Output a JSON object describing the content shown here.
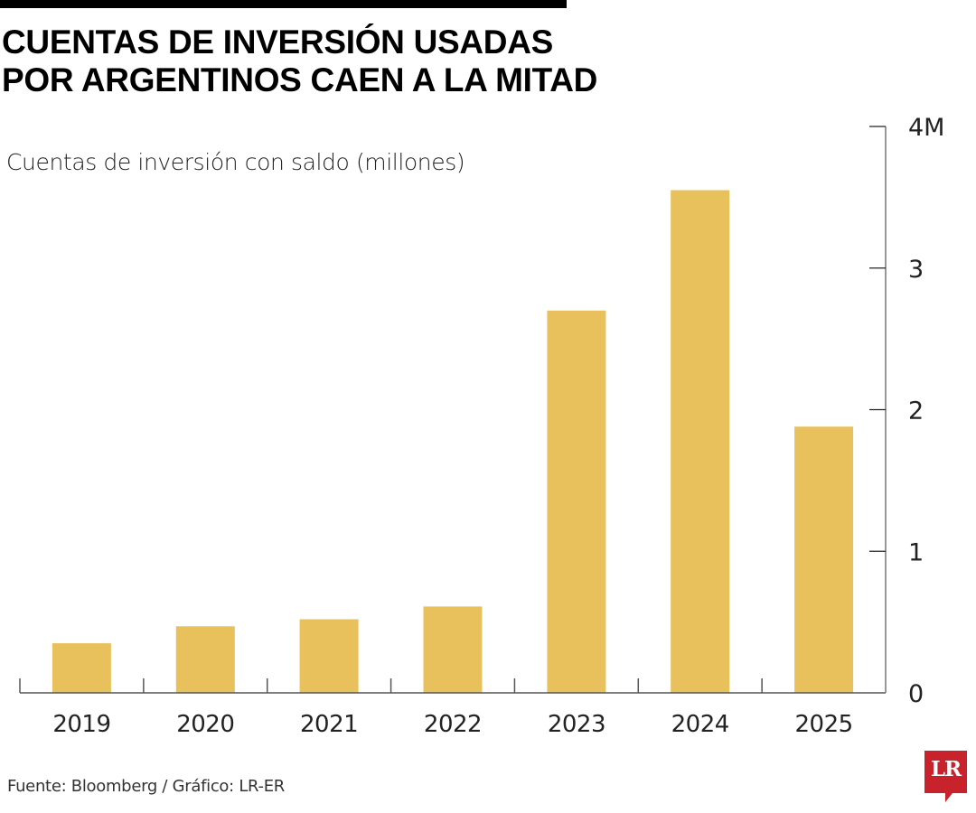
{
  "header": {
    "title_line1": "CUENTAS DE INVERSIÓN USADAS",
    "title_line2": "POR ARGENTINOS CAEN A LA MITAD"
  },
  "footer": {
    "source": "Fuente: Bloomberg / Gráfico: LR-ER",
    "logo_text": "LR"
  },
  "colors": {
    "bar": "#E8C05C",
    "axis": "#555555",
    "logo": "#C8232C"
  },
  "chart_data": {
    "type": "bar",
    "title": "CUENTAS DE INVERSIÓN USADAS POR ARGENTINOS CAEN A LA MITAD",
    "subtitle": "Cuentas de inversión con saldo (millones)",
    "xlabel": "",
    "ylabel": "Cuentas de inversión con saldo (millones)",
    "categories": [
      "2019",
      "2020",
      "2021",
      "2022",
      "2023",
      "2024",
      "2025"
    ],
    "values": [
      0.35,
      0.47,
      0.52,
      0.61,
      2.7,
      3.55,
      1.88
    ],
    "ylim": [
      0,
      4
    ],
    "yticks": [
      0,
      1,
      2,
      3,
      4
    ],
    "ytick_labels": [
      "0",
      "1",
      "2",
      "3",
      "4M"
    ],
    "y_axis_side": "right",
    "grid": false,
    "legend": "none"
  }
}
